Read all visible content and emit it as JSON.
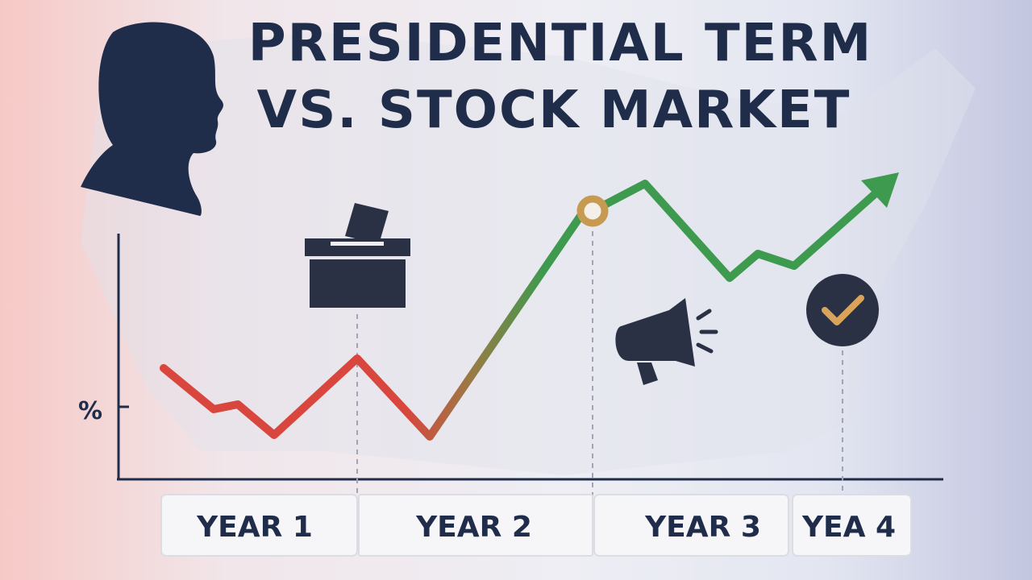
{
  "title": {
    "line1": "PRESIDENTIAL TERM",
    "line2": "VS. STOCK MARKET"
  },
  "axis": {
    "y_label": "%",
    "years": [
      "YEAR 1",
      "YEAR 2",
      "YEAR 3",
      "YEA 4"
    ]
  }
}
